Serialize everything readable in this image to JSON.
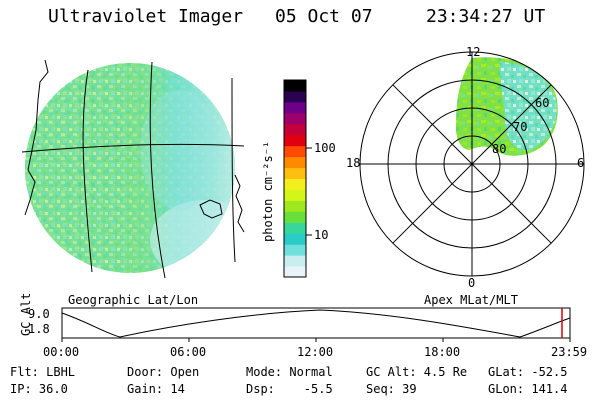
{
  "header": {
    "instrument": "Ultraviolet Imager",
    "date": "05 Oct 07",
    "time": "23:34:27 UT"
  },
  "colorbar": {
    "unit_label": "photon cm⁻²s⁻¹",
    "ticks": [
      "100",
      "10"
    ],
    "colors": [
      "#eaf4f8",
      "#c8eef0",
      "#6fe0dc",
      "#29ccc8",
      "#37d79a",
      "#69e03a",
      "#9fe81d",
      "#d2f51a",
      "#f3ee1d",
      "#ffbe10",
      "#ff8a00",
      "#ff4a00",
      "#e00010",
      "#c4003a",
      "#9c006a",
      "#6e0088",
      "#2c0050",
      "#000000"
    ]
  },
  "left_panel": {
    "caption": "Geographic Lat/Lon"
  },
  "right_panel": {
    "caption": "Apex MLat/MLT",
    "mlt_labels": {
      "top": "12",
      "left": "18",
      "right": "6",
      "bottom": "0"
    },
    "mlat_labels": [
      "60",
      "70",
      "80"
    ]
  },
  "altitude_plot": {
    "ylabel": "GC Alt",
    "ticks": [
      "9.0",
      "1.8"
    ],
    "time_ticks": [
      "00:00",
      "06:00",
      "12:00",
      "18:00",
      "23:59"
    ],
    "marker_color": "#e00000"
  },
  "status": {
    "flt": "Flt: LBHL",
    "door": "Door: Open",
    "mode": "Mode: Normal",
    "gc_alt": "GC Alt: 4.5 Re",
    "glat": "GLat: -52.5",
    "ip": "IP: 36.0",
    "gain": "Gain: 14",
    "dsp": "Dsp:    -5.5",
    "seq": "Seq: 39",
    "glon": "GLon: 141.4"
  },
  "colors": {
    "aurora_green": "#9fe81d",
    "aurora_cyan": "#6fe0dc",
    "aurora_light": "#c8eef0"
  }
}
